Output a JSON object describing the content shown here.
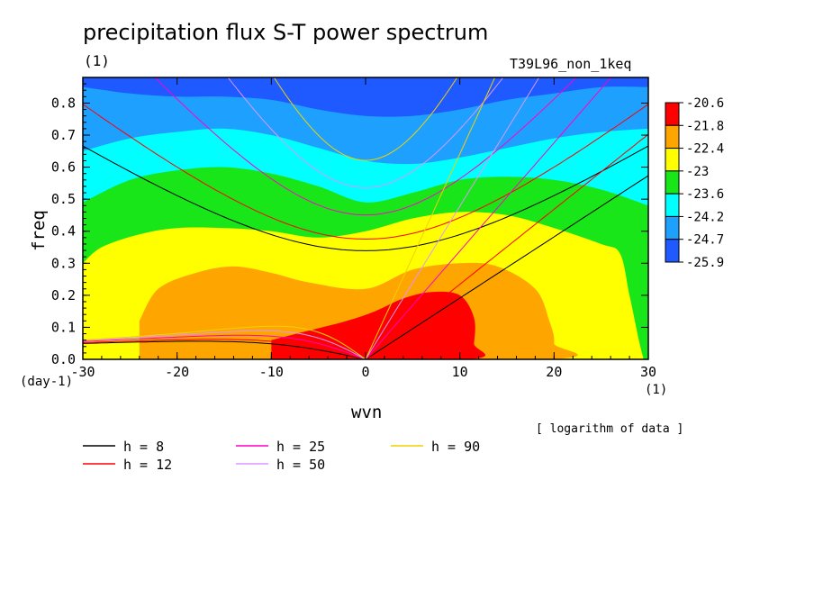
{
  "chart_data": {
    "type": "contour",
    "title": "precipitation flux S-T power spectrum",
    "units_left": "(1)",
    "run_label": "T39L96_non_1keq",
    "xlabel": "wvn",
    "ylabel": "freq",
    "x_units": "(1)",
    "y_units": "(day-1)",
    "xlim": [
      -30,
      30
    ],
    "ylim": [
      0,
      0.88
    ],
    "xticks": [
      -30,
      -20,
      -10,
      0,
      10,
      20,
      30
    ],
    "xtick_labels": [
      "-30",
      "-20",
      "-10",
      "0",
      "10",
      "20",
      "30"
    ],
    "yticks": [
      0.0,
      0.1,
      0.2,
      0.3,
      0.4,
      0.5,
      0.6,
      0.7,
      0.8
    ],
    "ytick_labels": [
      "0.0",
      "0.1",
      "0.2",
      "0.3",
      "0.4",
      "0.5",
      "0.6",
      "0.7",
      "0.8"
    ],
    "colorbar": {
      "labels": [
        "-20.6",
        "-21.8",
        "-22.4",
        "-23",
        "-23.6",
        "-24.2",
        "-24.7",
        "-25.9"
      ],
      "colors": [
        "#ff0000",
        "#ffa500",
        "#ffff00",
        "#19e619",
        "#00ffff",
        "#1ea0ff",
        "#1e5aff"
      ]
    },
    "note": "[ logarithm of data ]",
    "contour_fill": [
      {
        "level": "-24.7 to -25.9",
        "color": "#1e5aff",
        "boundary": []
      },
      {
        "level": "-24.2 to -24.7",
        "color": "#1ea0ff",
        "boundary": [
          [
            -30,
            0.85
          ],
          [
            -25,
            0.83
          ],
          [
            -20,
            0.82
          ],
          [
            -15,
            0.82
          ],
          [
            -10,
            0.81
          ],
          [
            -5,
            0.78
          ],
          [
            0,
            0.76
          ],
          [
            5,
            0.76
          ],
          [
            10,
            0.78
          ],
          [
            15,
            0.81
          ],
          [
            20,
            0.83
          ],
          [
            25,
            0.85
          ],
          [
            30,
            0.85
          ]
        ]
      },
      {
        "level": "-23.6 to -24.2",
        "color": "#00ffff",
        "boundary": [
          [
            -30,
            0.65
          ],
          [
            -25,
            0.69
          ],
          [
            -20,
            0.71
          ],
          [
            -15,
            0.72
          ],
          [
            -10,
            0.7
          ],
          [
            -5,
            0.66
          ],
          [
            0,
            0.62
          ],
          [
            5,
            0.61
          ],
          [
            10,
            0.63
          ],
          [
            15,
            0.66
          ],
          [
            20,
            0.69
          ],
          [
            25,
            0.71
          ],
          [
            30,
            0.72
          ]
        ]
      },
      {
        "level": "-23 to -23.6",
        "color": "#19e619",
        "boundary": [
          [
            -30,
            0.49
          ],
          [
            -25,
            0.56
          ],
          [
            -20,
            0.59
          ],
          [
            -15,
            0.6
          ],
          [
            -10,
            0.58
          ],
          [
            -5,
            0.54
          ],
          [
            0,
            0.49
          ],
          [
            5,
            0.52
          ],
          [
            10,
            0.56
          ],
          [
            15,
            0.57
          ],
          [
            20,
            0.56
          ],
          [
            25,
            0.53
          ],
          [
            30,
            0.48
          ]
        ]
      },
      {
        "level": "-22.4 to -23",
        "color": "#ffff00",
        "boundary": [
          [
            -30,
            0.3
          ],
          [
            -28,
            0.35
          ],
          [
            -24,
            0.39
          ],
          [
            -20,
            0.41
          ],
          [
            -15,
            0.41
          ],
          [
            -10,
            0.4
          ],
          [
            -5,
            0.38
          ],
          [
            0,
            0.4
          ],
          [
            5,
            0.44
          ],
          [
            10,
            0.46
          ],
          [
            15,
            0.45
          ],
          [
            20,
            0.41
          ],
          [
            25,
            0.36
          ],
          [
            27,
            0.33
          ],
          [
            28,
            0.2
          ],
          [
            29,
            0.06
          ],
          [
            29.5,
            0.0
          ]
        ]
      },
      {
        "level": "-21.8 to -22.4",
        "color": "#ffa500",
        "boundary": [
          [
            -24,
            0.12
          ],
          [
            -22,
            0.22
          ],
          [
            -18,
            0.27
          ],
          [
            -14,
            0.29
          ],
          [
            -10,
            0.27
          ],
          [
            -6,
            0.24
          ],
          [
            0,
            0.22
          ],
          [
            5,
            0.28
          ],
          [
            10,
            0.3
          ],
          [
            14,
            0.29
          ],
          [
            18,
            0.22
          ],
          [
            19.5,
            0.12
          ],
          [
            20,
            0.05
          ],
          [
            19,
            0.0
          ],
          [
            -24,
            0.0
          ]
        ]
      },
      {
        "level": "-20.6 to -21.8",
        "color": "#ff0000",
        "boundary": [
          [
            -10,
            0.06
          ],
          [
            -6,
            0.09
          ],
          [
            -2,
            0.12
          ],
          [
            1,
            0.15
          ],
          [
            4,
            0.19
          ],
          [
            7,
            0.21
          ],
          [
            10,
            0.2
          ],
          [
            11.5,
            0.13
          ],
          [
            11.5,
            0.05
          ],
          [
            11,
            0.0
          ],
          [
            -10,
            0.0
          ]
        ]
      }
    ],
    "dispersion_curves": [
      {
        "label": "h = 8",
        "h": 8,
        "color": "#000000"
      },
      {
        "label": "h = 12",
        "h": 12,
        "color": "#ff0000"
      },
      {
        "label": "h = 25",
        "h": 25,
        "color": "#ff00c8"
      },
      {
        "label": "h = 50",
        "h": 50,
        "color": "#dc96ff"
      },
      {
        "label": "h = 90",
        "h": 90,
        "color": "#f0d200"
      }
    ]
  }
}
